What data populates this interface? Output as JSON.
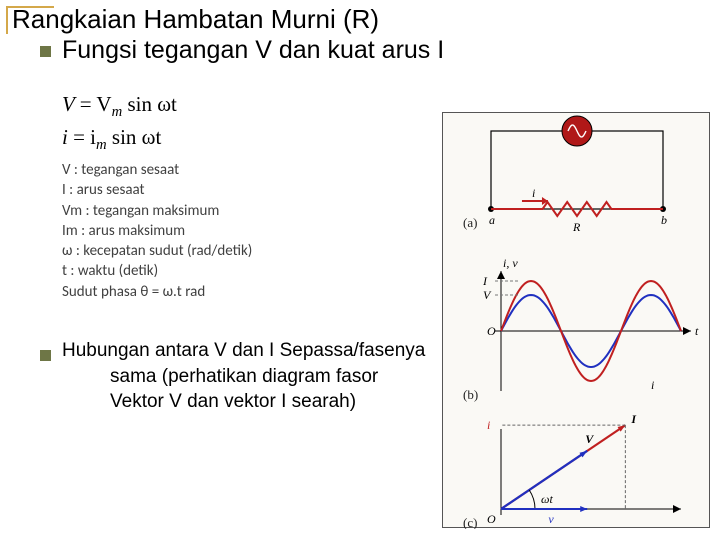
{
  "title": "Rangkaian Hambatan Murni (R)",
  "subtitle": "Fungsi tegangan V dan kuat arus I",
  "formulas": {
    "line1_lhs": "V",
    "line1_rhs_pre": "= V",
    "line1_sub": "m",
    "line1_rhs_post": " sin ωt",
    "line2_lhs": "i",
    "line2_rhs_pre": "= i",
    "line2_sub": "m",
    "line2_rhs_post": " sin ωt"
  },
  "definitions": [
    "V   : tegangan sesaat",
    "I   : arus sesaat",
    "Vm : tegangan maksimum",
    "Im : arus maksimum",
    "ω   : kecepatan  sudut (rad/detik)",
    "t   : waktu (detik)",
    "Sudut phasa θ = ω.t  rad"
  ],
  "relation": {
    "line1": "Hubungan antara V dan I Sepassa/fasenya",
    "line2": "sama (perhatikan diagram fasor",
    "line3": "Vektor V dan vektor I searah)"
  },
  "diagram": {
    "background": "#faf9f5",
    "border": "#555555",
    "panel_a": {
      "label": "(a)",
      "ac_source_color": "#b01818",
      "resistor_color": "#c02020",
      "wire_color": "#000000",
      "node_a": "a",
      "node_b": "b",
      "I_label": "i",
      "R_label": "R"
    },
    "panel_b": {
      "label": "(b)",
      "I_color": "#c02020",
      "V_color": "#2030c0",
      "axis_color": "#000000",
      "x_axis_label": "t",
      "y_axis_label": "i, v",
      "I_legend": "I",
      "V_legend": "V",
      "i_legend": "i",
      "amplitude_I": 1.0,
      "amplitude_V": 0.72,
      "periods": 1.5
    },
    "panel_c": {
      "label": "(c)",
      "I_color": "#c02020",
      "V_color": "#2030c0",
      "axis_color": "#000000",
      "angle_label": "ωt",
      "I_label": "I",
      "V_label": "V",
      "v_proj": "v",
      "i_proj": "i",
      "angle_deg": 34
    }
  }
}
